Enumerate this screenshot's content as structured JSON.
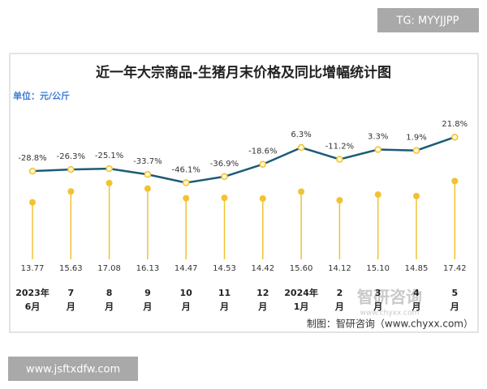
{
  "chart_data": {
    "type": "lollipop-line",
    "title": "近一年大宗商品-生猪月末价格及同比增幅统计图",
    "unit_label": "单位：元/公斤",
    "source": "制图：智研咨询（www.chyxx.com）",
    "watermark": {
      "brand": "智研咨询",
      "url": "www.chyxx.com"
    },
    "overlay_top": "TG: MYYJJPP",
    "overlay_bottom": "www.jsftxdfw.com",
    "categories": [
      "2023年\n6月",
      "7\n月",
      "8\n月",
      "9\n月",
      "10\n月",
      "11\n月",
      "12\n月",
      "2024年\n1月",
      "2\n月",
      "3\n月",
      "4\n月",
      "5\n月"
    ],
    "ylim": [
      4,
      29
    ],
    "y2lim": [
      -160,
      57
    ],
    "series": [
      {
        "color": "#f2c230",
        "values": [
          13.77,
          15.63,
          17.08,
          16.13,
          14.47,
          14.53,
          14.42,
          15.6,
          14.12,
          15.1,
          14.85,
          17.42
        ],
        "value_labels": [
          "13.77",
          "15.63",
          "17.08",
          "16.13",
          "14.47",
          "14.53",
          "14.42",
          "15.60",
          "14.12",
          "15.10",
          "14.85",
          "17.42"
        ]
      },
      {
        "color": "#1d5b79",
        "axis": "y2",
        "values": [
          -28.8,
          -26.3,
          -25.1,
          -33.7,
          -46.1,
          -36.9,
          -18.6,
          6.3,
          -11.2,
          3.3,
          1.9,
          21.8
        ],
        "value_labels": [
          "-28.8%",
          "-26.3%",
          "-25.1%",
          "-33.7%",
          "-46.1%",
          "-36.9%",
          "-18.6%",
          "6.3%",
          "-11.2%",
          "3.3%",
          "1.9%",
          "21.8%"
        ]
      }
    ]
  }
}
